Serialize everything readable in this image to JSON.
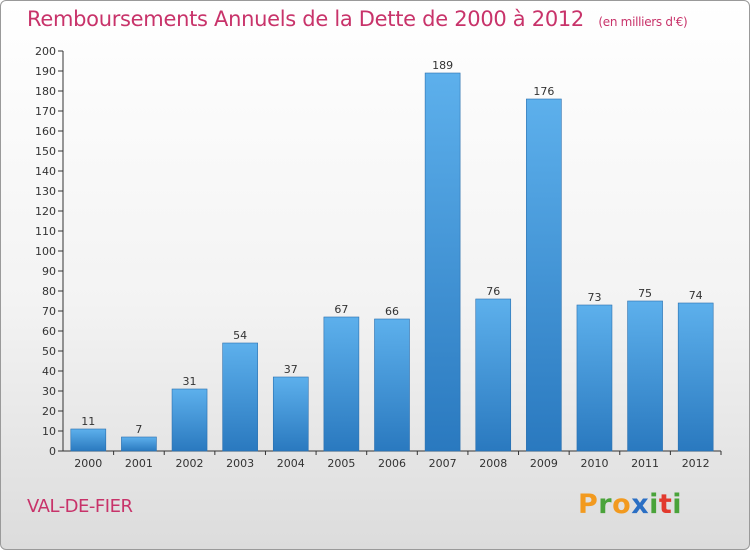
{
  "chart_data": {
    "type": "bar",
    "title": "Remboursements Annuels de la Dette de 2000 à 2012",
    "subtitle": "(en milliers d'€)",
    "categories": [
      "2000",
      "2001",
      "2002",
      "2003",
      "2004",
      "2005",
      "2006",
      "2007",
      "2008",
      "2009",
      "2010",
      "2011",
      "2012"
    ],
    "values": [
      11,
      7,
      31,
      54,
      37,
      67,
      66,
      189,
      76,
      176,
      73,
      75,
      74
    ],
    "ylim": [
      0,
      200
    ],
    "ytick_step": 10,
    "grid": false,
    "bar_color": "#4a9fe0"
  },
  "place": "VAL-DE-FIER",
  "logo": {
    "text": "Proxiti",
    "letters": [
      "P",
      "r",
      "o",
      "x",
      "i",
      "t",
      "i"
    ],
    "colors": [
      "#f29a1f",
      "#4aa33a",
      "#f29a1f",
      "#2b6fc4",
      "#4aa33a",
      "#e23a2e",
      "#4aa33a"
    ]
  },
  "colors": {
    "accent": "#c8336a",
    "axis": "#333333"
  }
}
